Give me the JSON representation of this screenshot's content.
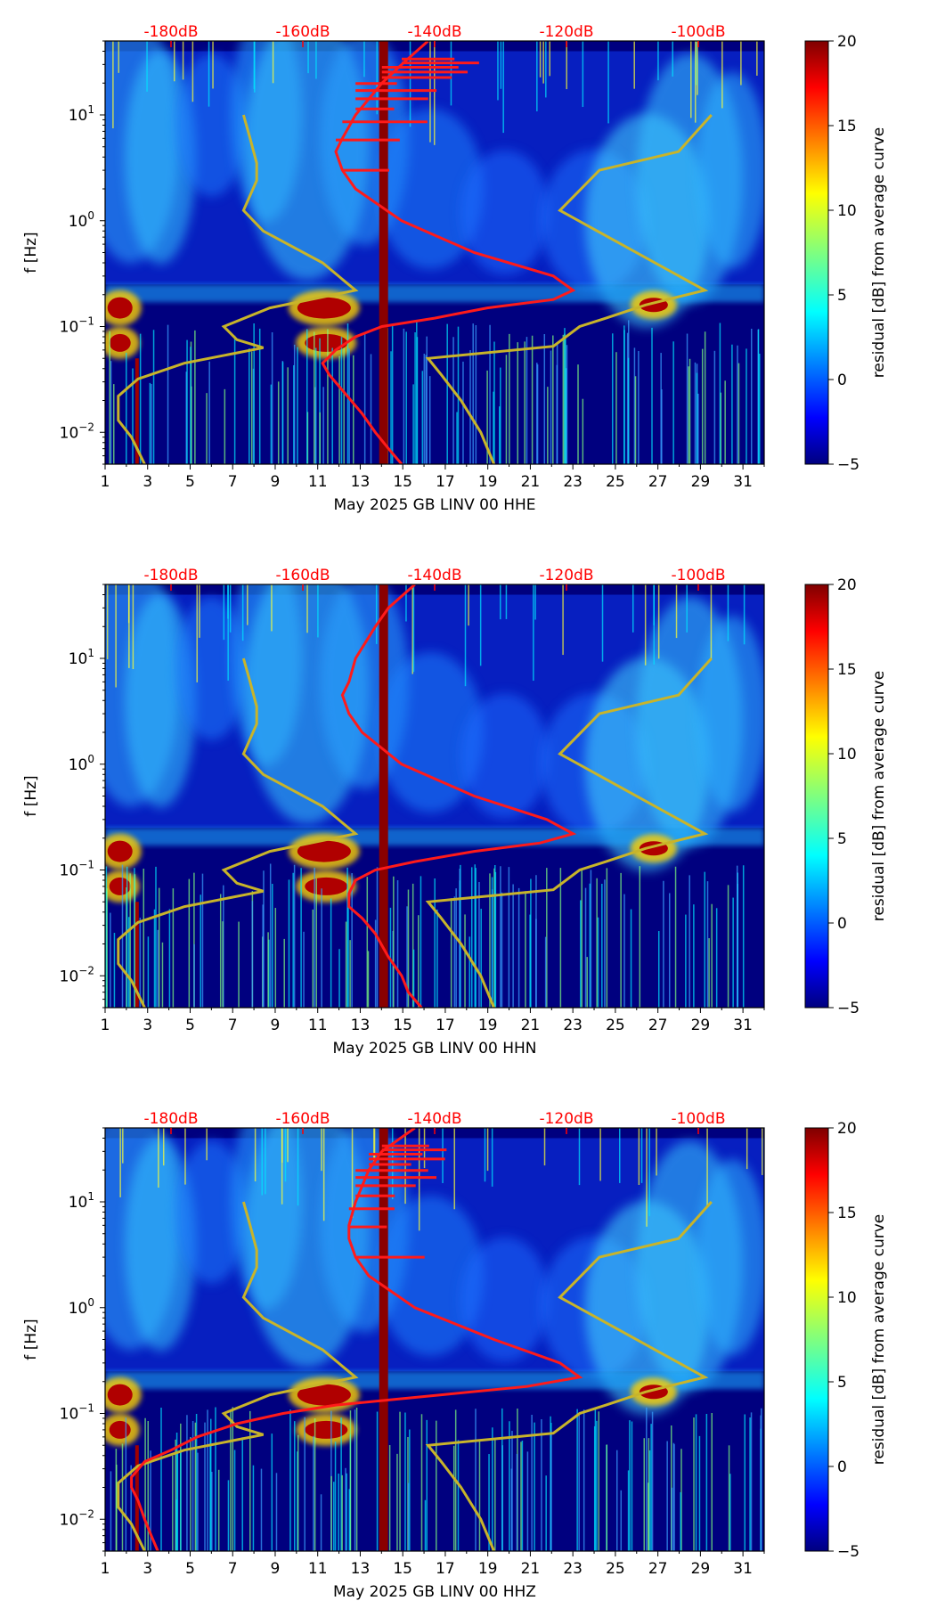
{
  "chart_data": [
    {
      "type": "heatmap",
      "xlabel": "May 2025 GB LINV 00 HHE",
      "ylabel": "f [Hz]",
      "x_ticks": [
        "1",
        "3",
        "5",
        "7",
        "9",
        "11",
        "13",
        "15",
        "17",
        "19",
        "21",
        "23",
        "25",
        "27",
        "29",
        "31"
      ],
      "xlim": [
        1,
        32
      ],
      "ylim": [
        0.005,
        50
      ],
      "y_scale": "log",
      "y_tick_labels": [
        {
          "base": "10",
          "exp": "−2",
          "value": 0.01
        },
        {
          "base": "10",
          "exp": "−1",
          "value": 0.1
        },
        {
          "base": "10",
          "exp": "0",
          "value": 1
        },
        {
          "base": "10",
          "exp": "1",
          "value": 10
        }
      ],
      "top_db_labels": [
        "-180dB",
        "-160dB",
        "-140dB",
        "-120dB",
        "-100dB"
      ],
      "colorbar": {
        "label": "residual [dB] from average curve",
        "ticks": [
          "20",
          "15",
          "10",
          "5",
          "0",
          "−5"
        ],
        "range": [
          -5,
          20
        ],
        "colormap": "jet"
      },
      "vertical_band_day": 14.1,
      "psd_curve_db": {
        "name": "average PSD",
        "freq": [
          50,
          30,
          20,
          10,
          6,
          4.5,
          3,
          2,
          1,
          0.5,
          0.3,
          0.22,
          0.18,
          0.15,
          0.12,
          0.1,
          0.08,
          0.06,
          0.045,
          0.035,
          0.025,
          0.015,
          0.01,
          0.007,
          0.005
        ],
        "db": [
          -141,
          -145,
          -148,
          -152,
          -154,
          -155,
          -154,
          -152,
          -145,
          -134,
          -122,
          -119,
          -122,
          -132,
          -140,
          -148,
          -152,
          -155,
          -157,
          -156,
          -154,
          -151,
          -149,
          -147,
          -145
        ]
      },
      "model_curves": [
        {
          "name": "low noise model",
          "freq": [
            10,
            6,
            3.5,
            2.4,
            1.25,
            0.8,
            0.4,
            0.22,
            0.15,
            0.1,
            0.075,
            0.063,
            0.045,
            0.032,
            0.022,
            0.013,
            0.009,
            0.005
          ],
          "db": [
            -169,
            -168,
            -167,
            -167,
            -169,
            -166,
            -157,
            -152,
            -165,
            -172,
            -170,
            -166,
            -178,
            -185,
            -188,
            -188,
            -186,
            -184
          ]
        },
        {
          "name": "high noise model",
          "freq": [
            10,
            4.5,
            3,
            1.25,
            0.22,
            0.16,
            0.12,
            0.1,
            0.065,
            0.05,
            0.035,
            0.02,
            0.01,
            0.005
          ],
          "db": [
            -98,
            -103,
            -115,
            -121,
            -99,
            -108,
            -114,
            -118,
            -122,
            -141,
            -139,
            -136,
            -133,
            -131
          ]
        }
      ]
    },
    {
      "type": "heatmap",
      "xlabel": "May 2025 GB LINV 00 HHN",
      "ylabel": "f [Hz]",
      "x_ticks": [
        "1",
        "3",
        "5",
        "7",
        "9",
        "11",
        "13",
        "15",
        "17",
        "19",
        "21",
        "23",
        "25",
        "27",
        "29",
        "31"
      ],
      "xlim": [
        1,
        32
      ],
      "ylim": [
        0.005,
        50
      ],
      "y_scale": "log",
      "y_tick_labels": [
        {
          "base": "10",
          "exp": "−2",
          "value": 0.01
        },
        {
          "base": "10",
          "exp": "−1",
          "value": 0.1
        },
        {
          "base": "10",
          "exp": "0",
          "value": 1
        },
        {
          "base": "10",
          "exp": "1",
          "value": 10
        }
      ],
      "top_db_labels": [
        "-180dB",
        "-160dB",
        "-140dB",
        "-120dB",
        "-100dB"
      ],
      "colorbar": {
        "label": "residual [dB] from average curve",
        "ticks": [
          "20",
          "15",
          "10",
          "5",
          "0",
          "−5"
        ],
        "range": [
          -5,
          20
        ],
        "colormap": "jet"
      },
      "vertical_band_day": 14.1,
      "psd_curve_db": {
        "name": "average PSD",
        "freq": [
          50,
          30,
          20,
          10,
          6,
          4.5,
          3,
          2,
          1,
          0.5,
          0.3,
          0.22,
          0.18,
          0.15,
          0.12,
          0.1,
          0.08,
          0.06,
          0.045,
          0.035,
          0.025,
          0.015,
          0.01,
          0.007,
          0.005
        ],
        "db": [
          -143,
          -147,
          -149,
          -152,
          -153,
          -154,
          -153,
          -151,
          -145,
          -134,
          -123,
          -119,
          -124,
          -134,
          -143,
          -149,
          -152,
          -153,
          -153,
          -151,
          -149,
          -147,
          -145,
          -144,
          -142
        ]
      },
      "model_curves": [
        {
          "name": "low noise model",
          "freq": [
            10,
            6,
            3.5,
            2.4,
            1.25,
            0.8,
            0.4,
            0.22,
            0.15,
            0.1,
            0.075,
            0.063,
            0.045,
            0.032,
            0.022,
            0.013,
            0.009,
            0.005
          ],
          "db": [
            -169,
            -168,
            -167,
            -167,
            -169,
            -166,
            -157,
            -152,
            -165,
            -172,
            -170,
            -166,
            -178,
            -185,
            -188,
            -188,
            -186,
            -184
          ]
        },
        {
          "name": "high noise model",
          "freq": [
            10,
            4.5,
            3,
            1.25,
            0.22,
            0.16,
            0.12,
            0.1,
            0.065,
            0.05,
            0.035,
            0.02,
            0.01,
            0.005
          ],
          "db": [
            -98,
            -103,
            -115,
            -121,
            -99,
            -108,
            -114,
            -118,
            -122,
            -141,
            -139,
            -136,
            -133,
            -131
          ]
        }
      ]
    },
    {
      "type": "heatmap",
      "xlabel": "May 2025 GB LINV 00 HHZ",
      "ylabel": "f [Hz]",
      "x_ticks": [
        "1",
        "3",
        "5",
        "7",
        "9",
        "11",
        "13",
        "15",
        "17",
        "19",
        "21",
        "23",
        "25",
        "27",
        "29",
        "31"
      ],
      "xlim": [
        1,
        32
      ],
      "ylim": [
        0.005,
        50
      ],
      "y_scale": "log",
      "y_tick_labels": [
        {
          "base": "10",
          "exp": "−2",
          "value": 0.01
        },
        {
          "base": "10",
          "exp": "−1",
          "value": 0.1
        },
        {
          "base": "10",
          "exp": "0",
          "value": 1
        },
        {
          "base": "10",
          "exp": "1",
          "value": 10
        }
      ],
      "top_db_labels": [
        "-180dB",
        "-160dB",
        "-140dB",
        "-120dB",
        "-100dB"
      ],
      "colorbar": {
        "label": "residual [dB] from average curve",
        "ticks": [
          "20",
          "15",
          "10",
          "5",
          "0",
          "−5"
        ],
        "range": [
          -5,
          20
        ],
        "colormap": "jet"
      },
      "vertical_band_day": 14.1,
      "psd_curve_db": {
        "name": "average PSD",
        "freq": [
          50,
          30,
          20,
          10,
          6,
          4.5,
          3,
          2,
          1,
          0.5,
          0.3,
          0.22,
          0.18,
          0.15,
          0.12,
          0.1,
          0.08,
          0.06,
          0.045,
          0.035,
          0.025,
          0.02,
          0.015,
          0.01,
          0.007,
          0.005
        ],
        "db": [
          -143,
          -148,
          -150,
          -152,
          -153,
          -153,
          -152,
          -150,
          -143,
          -131,
          -121,
          -118,
          -126,
          -139,
          -155,
          -163,
          -170,
          -176,
          -180,
          -184,
          -186,
          -186,
          -185,
          -184,
          -183,
          -182
        ]
      },
      "model_curves": [
        {
          "name": "low noise model",
          "freq": [
            10,
            6,
            3.5,
            2.4,
            1.25,
            0.8,
            0.4,
            0.22,
            0.15,
            0.1,
            0.075,
            0.063,
            0.045,
            0.032,
            0.022,
            0.013,
            0.009,
            0.005
          ],
          "db": [
            -169,
            -168,
            -167,
            -167,
            -169,
            -166,
            -157,
            -152,
            -165,
            -172,
            -170,
            -166,
            -178,
            -185,
            -188,
            -188,
            -186,
            -184
          ]
        },
        {
          "name": "high noise model",
          "freq": [
            10,
            4.5,
            3,
            1.25,
            0.22,
            0.16,
            0.12,
            0.1,
            0.065,
            0.05,
            0.035,
            0.02,
            0.01,
            0.005
          ],
          "db": [
            -98,
            -103,
            -115,
            -121,
            -99,
            -108,
            -114,
            -118,
            -122,
            -141,
            -139,
            -136,
            -133,
            -131
          ]
        }
      ]
    }
  ],
  "colors": {
    "psd_curve": "#ff1a1a",
    "model_curve": "#c8b42a",
    "db_label": "#ff0000",
    "background": "#00007f"
  }
}
